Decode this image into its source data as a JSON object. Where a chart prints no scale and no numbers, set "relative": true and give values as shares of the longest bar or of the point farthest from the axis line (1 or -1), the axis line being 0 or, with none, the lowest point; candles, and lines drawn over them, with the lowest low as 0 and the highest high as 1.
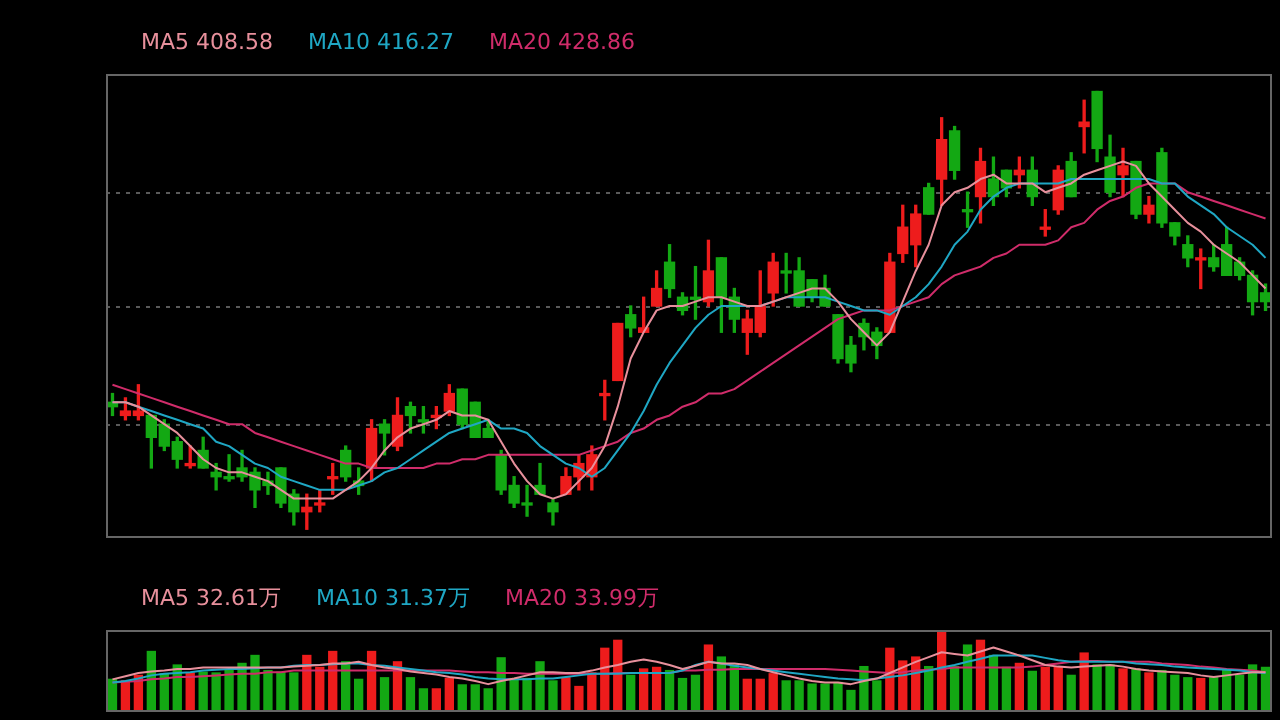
{
  "chart_data": [
    {
      "type": "candlestick",
      "relative": true,
      "legend": "top left",
      "categories": [
        null,
        null,
        null,
        null,
        null,
        null,
        null,
        null,
        null,
        null,
        null,
        null,
        null,
        null,
        null,
        null,
        null,
        null,
        null,
        null,
        null,
        null,
        null,
        null,
        null,
        null,
        null,
        null,
        null,
        null,
        null,
        null,
        null,
        null,
        null,
        null,
        null,
        null,
        null,
        null,
        null,
        null,
        null,
        null,
        null,
        null,
        null,
        null,
        null,
        null,
        null,
        null,
        null,
        null,
        null,
        null,
        null,
        null,
        null,
        null,
        null,
        null,
        null,
        null,
        null,
        null,
        null,
        null,
        null,
        null,
        null,
        null,
        null,
        null,
        null,
        null,
        null,
        null,
        null,
        null,
        null,
        null,
        null,
        null,
        null,
        null,
        null,
        null,
        null,
        null
      ],
      "ohlc": [
        [
          0.29,
          0.31,
          0.26,
          0.28
        ],
        [
          0.26,
          0.3,
          0.25,
          0.27
        ],
        [
          0.26,
          0.33,
          0.25,
          0.27
        ],
        [
          0.26,
          0.26,
          0.14,
          0.21
        ],
        [
          0.24,
          0.25,
          0.18,
          0.19
        ],
        [
          0.2,
          0.21,
          0.14,
          0.16
        ],
        [
          0.15,
          0.19,
          0.14,
          0.15
        ],
        [
          0.18,
          0.21,
          0.14,
          0.14
        ],
        [
          0.13,
          0.15,
          0.09,
          0.12
        ],
        [
          0.12,
          0.17,
          0.11,
          0.12
        ],
        [
          0.14,
          0.18,
          0.11,
          0.12
        ],
        [
          0.13,
          0.14,
          0.05,
          0.09
        ],
        [
          0.11,
          0.13,
          0.08,
          0.1
        ],
        [
          0.14,
          0.14,
          0.05,
          0.06
        ],
        [
          0.08,
          0.09,
          0.01,
          0.04
        ],
        [
          0.04,
          0.08,
          0,
          0.05
        ],
        [
          0.06,
          0.09,
          0.04,
          0.06
        ],
        [
          0.12,
          0.15,
          0.08,
          0.12
        ],
        [
          0.18,
          0.19,
          0.11,
          0.12
        ],
        [
          0.11,
          0.14,
          0.08,
          0.1
        ],
        [
          0.14,
          0.25,
          0.11,
          0.23
        ],
        [
          0.24,
          0.25,
          0.17,
          0.22
        ],
        [
          0.19,
          0.3,
          0.18,
          0.26
        ],
        [
          0.28,
          0.29,
          0.22,
          0.26
        ],
        [
          0.25,
          0.28,
          0.22,
          0.25
        ],
        [
          0.26,
          0.28,
          0.23,
          0.26
        ],
        [
          0.27,
          0.33,
          0.26,
          0.31
        ],
        [
          0.32,
          0.32,
          0.23,
          0.24
        ],
        [
          0.29,
          0.29,
          0.21,
          0.21
        ],
        [
          0.23,
          0.25,
          0.21,
          0.21
        ],
        [
          0.17,
          0.18,
          0.08,
          0.09
        ],
        [
          0.1,
          0.12,
          0.05,
          0.06
        ],
        [
          0.06,
          0.1,
          0.03,
          0.06
        ],
        [
          0.1,
          0.15,
          0.08,
          0.08
        ],
        [
          0.06,
          0.07,
          0.01,
          0.04
        ],
        [
          0.08,
          0.14,
          0.08,
          0.12
        ],
        [
          0.12,
          0.17,
          0.09,
          0.15
        ],
        [
          0.12,
          0.19,
          0.09,
          0.17
        ],
        [
          0.31,
          0.34,
          0.25,
          0.31
        ],
        [
          0.34,
          0.47,
          0.34,
          0.47
        ],
        [
          0.49,
          0.51,
          0.44,
          0.46
        ],
        [
          0.45,
          0.53,
          0.45,
          0.46
        ],
        [
          0.51,
          0.59,
          0.51,
          0.55
        ],
        [
          0.61,
          0.65,
          0.53,
          0.55
        ],
        [
          0.53,
          0.54,
          0.49,
          0.5
        ],
        [
          0.53,
          0.6,
          0.48,
          0.53
        ],
        [
          0.52,
          0.66,
          0.51,
          0.59
        ],
        [
          0.62,
          0.62,
          0.45,
          0.53
        ],
        [
          0.53,
          0.55,
          0.45,
          0.48
        ],
        [
          0.45,
          0.5,
          0.4,
          0.48
        ],
        [
          0.45,
          0.59,
          0.44,
          0.51
        ],
        [
          0.54,
          0.63,
          0.51,
          0.61
        ],
        [
          0.59,
          0.63,
          0.54,
          0.59
        ],
        [
          0.59,
          0.62,
          0.51,
          0.51
        ],
        [
          0.57,
          0.57,
          0.52,
          0.53
        ],
        [
          0.55,
          0.58,
          0.51,
          0.51
        ],
        [
          0.49,
          0.49,
          0.38,
          0.39
        ],
        [
          0.42,
          0.44,
          0.36,
          0.38
        ],
        [
          0.47,
          0.48,
          0.41,
          0.44
        ],
        [
          0.45,
          0.46,
          0.39,
          0.42
        ],
        [
          0.45,
          0.63,
          0.45,
          0.61
        ],
        [
          0.63,
          0.74,
          0.61,
          0.69
        ],
        [
          0.65,
          0.74,
          0.6,
          0.72
        ],
        [
          0.78,
          0.79,
          0.72,
          0.72
        ],
        [
          0.8,
          0.94,
          0.74,
          0.89
        ],
        [
          0.91,
          0.92,
          0.8,
          0.82
        ],
        [
          0.73,
          0.77,
          0.69,
          0.73
        ],
        [
          0.76,
          0.87,
          0.7,
          0.84
        ],
        [
          0.8,
          0.85,
          0.74,
          0.76
        ],
        [
          0.82,
          0.82,
          0.76,
          0.78
        ],
        [
          0.81,
          0.85,
          0.78,
          0.82
        ],
        [
          0.82,
          0.85,
          0.74,
          0.76
        ],
        [
          0.69,
          0.73,
          0.67,
          0.69
        ],
        [
          0.73,
          0.83,
          0.72,
          0.82
        ],
        [
          0.84,
          0.86,
          0.76,
          0.76
        ],
        [
          0.92,
          0.98,
          0.86,
          0.93
        ],
        [
          1,
          1,
          0.84,
          0.87
        ],
        [
          0.85,
          0.9,
          0.76,
          0.77
        ],
        [
          0.81,
          0.87,
          0.76,
          0.83
        ],
        [
          0.84,
          0.84,
          0.71,
          0.72
        ],
        [
          0.72,
          0.76,
          0.7,
          0.74
        ],
        [
          0.86,
          0.87,
          0.69,
          0.7
        ],
        [
          0.7,
          0.7,
          0.65,
          0.67
        ],
        [
          0.65,
          0.67,
          0.6,
          0.62
        ],
        [
          0.62,
          0.64,
          0.55,
          0.62
        ],
        [
          0.62,
          0.65,
          0.59,
          0.6
        ],
        [
          0.65,
          0.69,
          0.58,
          0.58
        ],
        [
          0.61,
          0.62,
          0.57,
          0.58
        ],
        [
          0.58,
          0.59,
          0.49,
          0.52
        ],
        [
          0.54,
          0.56,
          0.5,
          0.52
        ]
      ],
      "colors": [
        "#13a813",
        "#ee1c1c",
        "#ee1c1c",
        "#13a813",
        "#13a813",
        "#13a813",
        "#ee1c1c",
        "#13a813",
        "#13a813",
        "#13a813",
        "#13a813",
        "#13a813",
        "#13a813",
        "#13a813",
        "#13a813",
        "#ee1c1c",
        "#ee1c1c",
        "#ee1c1c",
        "#13a813",
        "#13a813",
        "#ee1c1c",
        "#13a813",
        "#ee1c1c",
        "#13a813",
        "#13a813",
        "#ee1c1c",
        "#ee1c1c",
        "#13a813",
        "#13a813",
        "#13a813",
        "#13a813",
        "#13a813",
        "#13a813",
        "#13a813",
        "#13a813",
        "#ee1c1c",
        "#ee1c1c",
        "#ee1c1c",
        "#ee1c1c",
        "#ee1c1c",
        "#13a813",
        "#ee1c1c",
        "#ee1c1c",
        "#13a813",
        "#13a813",
        "#13a813",
        "#ee1c1c",
        "#13a813",
        "#13a813",
        "#ee1c1c",
        "#ee1c1c",
        "#ee1c1c",
        "#13a813",
        "#13a813",
        "#13a813",
        "#13a813",
        "#13a813",
        "#13a813",
        "#13a813",
        "#13a813",
        "#ee1c1c",
        "#ee1c1c",
        "#ee1c1c",
        "#13a813",
        "#ee1c1c",
        "#13a813",
        "#13a813",
        "#ee1c1c",
        "#13a813",
        "#13a813",
        "#ee1c1c",
        "#13a813",
        "#ee1c1c",
        "#ee1c1c",
        "#13a813",
        "#ee1c1c",
        "#13a813",
        "#13a813",
        "#ee1c1c",
        "#13a813",
        "#ee1c1c",
        "#13a813",
        "#13a813",
        "#13a813",
        "#ee1c1c",
        "#13a813",
        "#13a813",
        "#13a813",
        "#13a813",
        "#13a813"
      ],
      "series": [
        {
          "type": "line",
          "name": "MA5 408.58",
          "color": "#e8909c",
          "values": [
            0.29,
            0.29,
            0.28,
            0.26,
            0.24,
            0.22,
            0.19,
            0.16,
            0.14,
            0.13,
            0.13,
            0.12,
            0.11,
            0.09,
            0.07,
            0.07,
            0.07,
            0.07,
            0.09,
            0.11,
            0.14,
            0.18,
            0.21,
            0.23,
            0.24,
            0.25,
            0.27,
            0.26,
            0.26,
            0.25,
            0.2,
            0.15,
            0.11,
            0.08,
            0.07,
            0.08,
            0.11,
            0.14,
            0.19,
            0.28,
            0.39,
            0.45,
            0.5,
            0.51,
            0.51,
            0.52,
            0.53,
            0.53,
            0.52,
            0.51,
            0.51,
            0.52,
            0.53,
            0.54,
            0.55,
            0.55,
            0.52,
            0.48,
            0.45,
            0.42,
            0.45,
            0.52,
            0.59,
            0.65,
            0.74,
            0.77,
            0.78,
            0.8,
            0.81,
            0.79,
            0.79,
            0.79,
            0.77,
            0.78,
            0.79,
            0.81,
            0.82,
            0.83,
            0.84,
            0.83,
            0.79,
            0.76,
            0.73,
            0.7,
            0.68,
            0.65,
            0.63,
            0.61,
            0.58,
            0.55
          ]
        },
        {
          "type": "line",
          "name": "MA10 416.27",
          "color": "#1fa7c4",
          "values": [
            0.29,
            0.29,
            0.28,
            0.27,
            0.26,
            0.25,
            0.24,
            0.23,
            0.2,
            0.19,
            0.17,
            0.15,
            0.14,
            0.12,
            0.11,
            0.1,
            0.09,
            0.09,
            0.09,
            0.1,
            0.11,
            0.13,
            0.14,
            0.16,
            0.18,
            0.2,
            0.22,
            0.23,
            0.24,
            0.25,
            0.23,
            0.23,
            0.22,
            0.19,
            0.17,
            0.15,
            0.14,
            0.12,
            0.14,
            0.18,
            0.22,
            0.27,
            0.33,
            0.38,
            0.42,
            0.46,
            0.49,
            0.51,
            0.51,
            0.51,
            0.51,
            0.52,
            0.53,
            0.53,
            0.53,
            0.53,
            0.52,
            0.51,
            0.5,
            0.5,
            0.49,
            0.51,
            0.53,
            0.56,
            0.6,
            0.65,
            0.68,
            0.73,
            0.76,
            0.78,
            0.79,
            0.79,
            0.79,
            0.79,
            0.8,
            0.8,
            0.8,
            0.8,
            0.8,
            0.8,
            0.8,
            0.79,
            0.79,
            0.76,
            0.74,
            0.72,
            0.69,
            0.67,
            0.65,
            0.62
          ]
        },
        {
          "type": "line",
          "name": "MA20 428.86",
          "color": "#d02c6a",
          "values": [
            0.33,
            0.32,
            0.31,
            0.3,
            0.29,
            0.28,
            0.27,
            0.26,
            0.25,
            0.24,
            0.24,
            0.22,
            0.21,
            0.2,
            0.19,
            0.18,
            0.17,
            0.16,
            0.15,
            0.15,
            0.14,
            0.14,
            0.14,
            0.14,
            0.14,
            0.15,
            0.15,
            0.16,
            0.16,
            0.17,
            0.17,
            0.17,
            0.17,
            0.17,
            0.17,
            0.17,
            0.17,
            0.18,
            0.19,
            0.2,
            0.22,
            0.23,
            0.25,
            0.26,
            0.28,
            0.29,
            0.31,
            0.31,
            0.32,
            0.34,
            0.36,
            0.38,
            0.4,
            0.42,
            0.44,
            0.46,
            0.48,
            0.49,
            0.5,
            0.5,
            0.5,
            0.51,
            0.52,
            0.53,
            0.56,
            0.58,
            0.59,
            0.6,
            0.62,
            0.63,
            0.65,
            0.65,
            0.65,
            0.66,
            0.69,
            0.7,
            0.73,
            0.75,
            0.76,
            0.78,
            0.79,
            0.79,
            0.79,
            0.77,
            0.76,
            0.75,
            0.74,
            0.73,
            0.72,
            0.71
          ]
        }
      ],
      "ref_lines": [
        {
          "axis": "y",
          "value": 0.77,
          "color": "#5a5a5a",
          "line_style": "dotted"
        },
        {
          "axis": "y",
          "value": 0.51,
          "color": "#5a5a5a",
          "line_style": "dotted"
        },
        {
          "axis": "y",
          "value": 0.24,
          "color": "#5a5a5a",
          "line_style": "dotted"
        }
      ]
    },
    {
      "type": "bar",
      "relative": true,
      "legend": "top left",
      "categories": [
        null,
        null,
        null,
        null,
        null,
        null,
        null,
        null,
        null,
        null,
        null,
        null,
        null,
        null,
        null,
        null,
        null,
        null,
        null,
        null,
        null,
        null,
        null,
        null,
        null,
        null,
        null,
        null,
        null,
        null,
        null,
        null,
        null,
        null,
        null,
        null,
        null,
        null,
        null,
        null,
        null,
        null,
        null,
        null,
        null,
        null,
        null,
        null,
        null,
        null,
        null,
        null,
        null,
        null,
        null,
        null,
        null,
        null,
        null,
        null,
        null,
        null,
        null,
        null,
        null,
        null,
        null,
        null,
        null,
        null,
        null,
        null,
        null,
        null,
        null,
        null,
        null,
        null,
        null,
        null,
        null,
        null,
        null,
        null,
        null,
        null,
        null,
        null,
        null,
        null
      ],
      "values": [
        0.41,
        0.39,
        0.46,
        0.76,
        0.48,
        0.59,
        0.49,
        0.5,
        0.49,
        0.52,
        0.61,
        0.71,
        0.52,
        0.5,
        0.49,
        0.71,
        0.56,
        0.76,
        0.63,
        0.41,
        0.76,
        0.43,
        0.63,
        0.43,
        0.29,
        0.29,
        0.42,
        0.34,
        0.34,
        0.29,
        0.68,
        0.42,
        0.42,
        0.63,
        0.39,
        0.43,
        0.32,
        0.49,
        0.8,
        0.9,
        0.46,
        0.54,
        0.56,
        0.52,
        0.42,
        0.46,
        0.84,
        0.69,
        0.59,
        0.41,
        0.41,
        0.48,
        0.39,
        0.39,
        0.35,
        0.35,
        0.37,
        0.27,
        0.57,
        0.39,
        0.8,
        0.64,
        0.69,
        0.57,
        1,
        0.57,
        0.84,
        0.9,
        0.71,
        0.56,
        0.61,
        0.51,
        0.56,
        0.57,
        0.46,
        0.74,
        0.59,
        0.59,
        0.54,
        0.54,
        0.49,
        0.52,
        0.46,
        0.43,
        0.42,
        0.43,
        0.52,
        0.46,
        0.59,
        0.56
      ],
      "colors": [
        "#13a813",
        "#ee1c1c",
        "#ee1c1c",
        "#13a813",
        "#13a813",
        "#13a813",
        "#ee1c1c",
        "#13a813",
        "#13a813",
        "#13a813",
        "#13a813",
        "#13a813",
        "#13a813",
        "#13a813",
        "#13a813",
        "#ee1c1c",
        "#ee1c1c",
        "#ee1c1c",
        "#13a813",
        "#13a813",
        "#ee1c1c",
        "#13a813",
        "#ee1c1c",
        "#13a813",
        "#13a813",
        "#ee1c1c",
        "#ee1c1c",
        "#13a813",
        "#13a813",
        "#13a813",
        "#13a813",
        "#13a813",
        "#13a813",
        "#13a813",
        "#13a813",
        "#ee1c1c",
        "#ee1c1c",
        "#ee1c1c",
        "#ee1c1c",
        "#ee1c1c",
        "#13a813",
        "#ee1c1c",
        "#ee1c1c",
        "#13a813",
        "#13a813",
        "#13a813",
        "#ee1c1c",
        "#13a813",
        "#13a813",
        "#ee1c1c",
        "#ee1c1c",
        "#ee1c1c",
        "#13a813",
        "#13a813",
        "#13a813",
        "#13a813",
        "#13a813",
        "#13a813",
        "#13a813",
        "#13a813",
        "#ee1c1c",
        "#ee1c1c",
        "#ee1c1c",
        "#13a813",
        "#ee1c1c",
        "#13a813",
        "#13a813",
        "#ee1c1c",
        "#13a813",
        "#13a813",
        "#ee1c1c",
        "#13a813",
        "#ee1c1c",
        "#ee1c1c",
        "#13a813",
        "#ee1c1c",
        "#13a813",
        "#13a813",
        "#ee1c1c",
        "#13a813",
        "#ee1c1c",
        "#13a813",
        "#13a813",
        "#13a813",
        "#ee1c1c",
        "#13a813",
        "#13a813",
        "#13a813",
        "#13a813",
        "#13a813"
      ],
      "series": [
        {
          "type": "line",
          "name": "MA5 32.61万",
          "color": "#e8909c",
          "values": [
            0.41,
            0.45,
            0.49,
            0.51,
            0.52,
            0.54,
            0.54,
            0.56,
            0.56,
            0.56,
            0.56,
            0.56,
            0.56,
            0.56,
            0.57,
            0.58,
            0.59,
            0.61,
            0.61,
            0.63,
            0.59,
            0.56,
            0.54,
            0.51,
            0.49,
            0.47,
            0.44,
            0.42,
            0.39,
            0.35,
            0.39,
            0.42,
            0.46,
            0.5,
            0.5,
            0.49,
            0.49,
            0.52,
            0.56,
            0.59,
            0.63,
            0.66,
            0.63,
            0.59,
            0.54,
            0.58,
            0.63,
            0.61,
            0.61,
            0.59,
            0.54,
            0.5,
            0.46,
            0.42,
            0.39,
            0.37,
            0.37,
            0.35,
            0.39,
            0.42,
            0.49,
            0.56,
            0.63,
            0.69,
            0.75,
            0.73,
            0.71,
            0.76,
            0.81,
            0.76,
            0.71,
            0.65,
            0.59,
            0.57,
            0.56,
            0.57,
            0.58,
            0.59,
            0.57,
            0.54,
            0.52,
            0.51,
            0.5,
            0.49,
            0.46,
            0.44,
            0.46,
            0.48,
            0.5,
            0.5
          ]
        },
        {
          "type": "line",
          "name": "MA10 31.37万",
          "color": "#1fa7c4",
          "values": [
            0.37,
            0.39,
            0.42,
            0.46,
            0.48,
            0.49,
            0.5,
            0.52,
            0.53,
            0.54,
            0.54,
            0.55,
            0.56,
            0.56,
            0.58,
            0.59,
            0.59,
            0.6,
            0.61,
            0.61,
            0.59,
            0.58,
            0.56,
            0.54,
            0.52,
            0.5,
            0.49,
            0.47,
            0.44,
            0.42,
            0.41,
            0.41,
            0.41,
            0.42,
            0.42,
            0.44,
            0.46,
            0.48,
            0.48,
            0.48,
            0.49,
            0.49,
            0.49,
            0.49,
            0.52,
            0.59,
            0.63,
            0.61,
            0.58,
            0.56,
            0.54,
            0.52,
            0.5,
            0.48,
            0.46,
            0.44,
            0.42,
            0.41,
            0.4,
            0.42,
            0.44,
            0.46,
            0.49,
            0.52,
            0.56,
            0.59,
            0.63,
            0.67,
            0.71,
            0.71,
            0.71,
            0.71,
            0.68,
            0.65,
            0.63,
            0.63,
            0.63,
            0.63,
            0.63,
            0.61,
            0.6,
            0.59,
            0.57,
            0.56,
            0.55,
            0.54,
            0.53,
            0.52,
            0.5,
            0.49
          ]
        },
        {
          "type": "line",
          "name": "MA20 33.99万",
          "color": "#d02c6a",
          "values": [
            0.37,
            0.38,
            0.39,
            0.41,
            0.42,
            0.44,
            0.44,
            0.45,
            0.46,
            0.47,
            0.48,
            0.48,
            0.5,
            0.5,
            0.52,
            0.52,
            0.52,
            0.52,
            0.52,
            0.52,
            0.52,
            0.52,
            0.52,
            0.52,
            0.52,
            0.52,
            0.52,
            0.51,
            0.5,
            0.5,
            0.49,
            0.49,
            0.48,
            0.48,
            0.48,
            0.48,
            0.48,
            0.48,
            0.48,
            0.49,
            0.49,
            0.49,
            0.49,
            0.49,
            0.52,
            0.52,
            0.53,
            0.53,
            0.54,
            0.54,
            0.54,
            0.54,
            0.54,
            0.54,
            0.54,
            0.54,
            0.53,
            0.52,
            0.51,
            0.5,
            0.49,
            0.5,
            0.52,
            0.53,
            0.54,
            0.56,
            0.56,
            0.56,
            0.56,
            0.56,
            0.56,
            0.57,
            0.59,
            0.61,
            0.63,
            0.64,
            0.64,
            0.63,
            0.63,
            0.63,
            0.63,
            0.61,
            0.6,
            0.59,
            0.57,
            0.56,
            0.54,
            0.53,
            0.52,
            0.5
          ]
        }
      ]
    }
  ]
}
